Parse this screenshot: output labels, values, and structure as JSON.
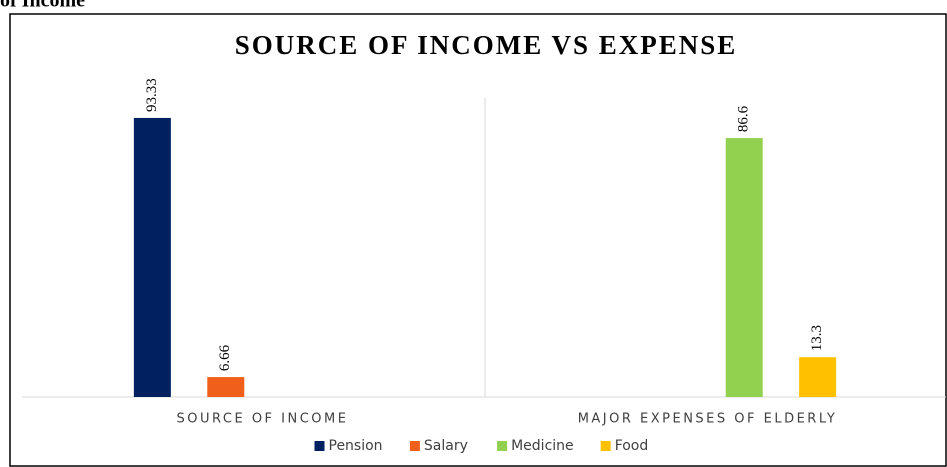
{
  "caption": "of Income",
  "chart_data": {
    "type": "bar",
    "title": "SOURCE OF INCOME VS EXPENSE",
    "categories": [
      "SOURCE OF INCOME",
      "MAJOR EXPENSES OF ELDERLY"
    ],
    "series": [
      {
        "name": "Pension",
        "color": "#002060",
        "values": [
          93.33,
          null
        ]
      },
      {
        "name": "Salary",
        "color": "#f0601a",
        "values": [
          6.66,
          null
        ]
      },
      {
        "name": "Medicine",
        "color": "#92d050",
        "values": [
          null,
          86.6
        ]
      },
      {
        "name": "Food",
        "color": "#ffc000",
        "values": [
          null,
          13.3
        ]
      }
    ],
    "ylim": [
      0,
      100
    ]
  }
}
